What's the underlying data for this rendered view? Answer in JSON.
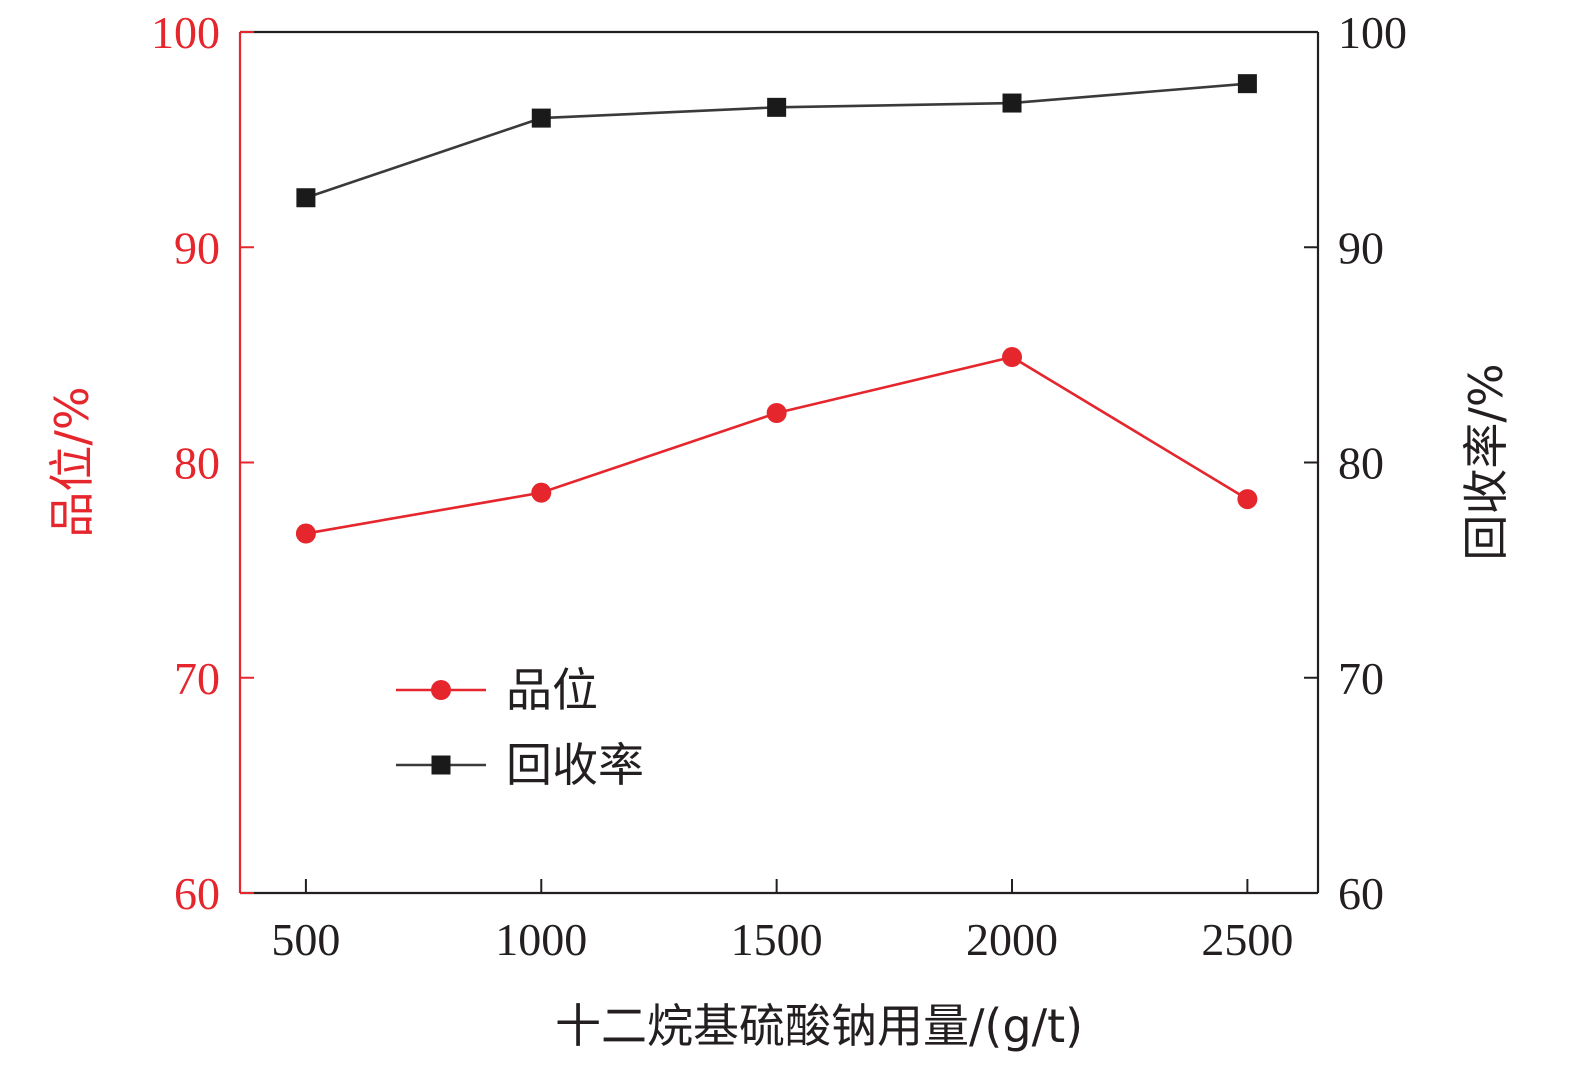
{
  "colors": {
    "grade": "#e5262d",
    "recovery": "#3a3a3a",
    "recovery_marker": "#1a1a1a",
    "axis": "#231f20"
  },
  "chart_data": {
    "type": "line",
    "x": [
      500,
      1000,
      1500,
      2000,
      2500
    ],
    "x_ticks": [
      "500",
      "1000",
      "1500",
      "2000",
      "2500"
    ],
    "xlabel": "十二烷基硫酸钠用量/(g/t)",
    "xlim": [
      360,
      2650
    ],
    "y_left": {
      "label": "品位/%",
      "lim": [
        60,
        100
      ],
      "ticks": [
        "60",
        "70",
        "80",
        "90",
        "100"
      ]
    },
    "y_right": {
      "label": "回收率/%",
      "lim": [
        60,
        100
      ],
      "ticks": [
        "60",
        "70",
        "80",
        "90",
        "100"
      ]
    },
    "series": [
      {
        "name": "品位",
        "axis": "left",
        "marker": "circle",
        "values": [
          76.7,
          78.6,
          82.3,
          84.9,
          78.3
        ]
      },
      {
        "name": "回收率",
        "axis": "right",
        "marker": "square",
        "values": [
          92.3,
          96.0,
          96.5,
          96.7,
          97.6
        ]
      }
    ],
    "legend": {
      "position": "center-left"
    },
    "grid": false
  }
}
